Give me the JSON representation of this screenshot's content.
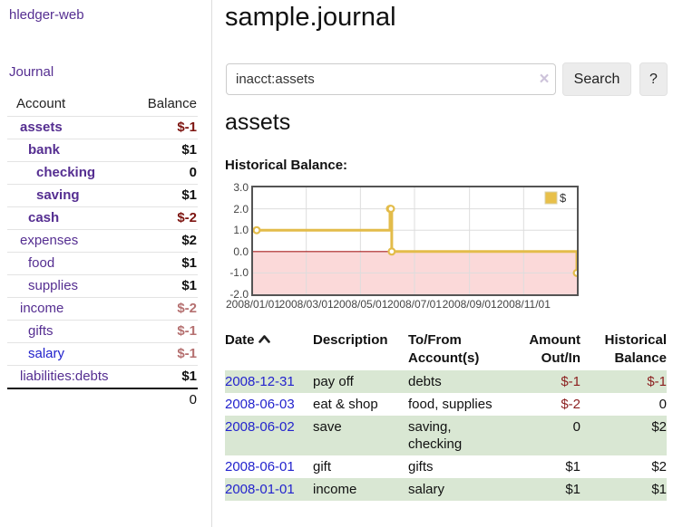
{
  "sidebar": {
    "app_title": "hledger-web",
    "nav": {
      "journal": "Journal"
    },
    "accounts": {
      "headers": {
        "account": "Account",
        "balance": "Balance"
      },
      "rows": [
        {
          "name": "assets",
          "depth": 1,
          "emph": true,
          "tone": "purple",
          "balance": "$-1",
          "balance_tone": "neg-strong"
        },
        {
          "name": "bank",
          "depth": 2,
          "emph": true,
          "tone": "purple",
          "balance": "$1",
          "balance_tone": ""
        },
        {
          "name": "checking",
          "depth": 3,
          "emph": true,
          "tone": "purple",
          "balance": "0",
          "balance_tone": ""
        },
        {
          "name": "saving",
          "depth": 3,
          "emph": true,
          "tone": "purple",
          "balance": "$1",
          "balance_tone": ""
        },
        {
          "name": "cash",
          "depth": 2,
          "emph": true,
          "tone": "purple",
          "balance": "$-2",
          "balance_tone": "neg-strong"
        },
        {
          "name": "expenses",
          "depth": 1,
          "emph": false,
          "tone": "purple",
          "balance": "$2",
          "balance_tone": ""
        },
        {
          "name": "food",
          "depth": 2,
          "emph": false,
          "tone": "purple",
          "balance": "$1",
          "balance_tone": ""
        },
        {
          "name": "supplies",
          "depth": 2,
          "emph": false,
          "tone": "purple",
          "balance": "$1",
          "balance_tone": ""
        },
        {
          "name": "income",
          "depth": 1,
          "emph": false,
          "tone": "purple",
          "balance": "$-2",
          "balance_tone": "neg-light"
        },
        {
          "name": "gifts",
          "depth": 2,
          "emph": false,
          "tone": "purple",
          "balance": "$-1",
          "balance_tone": "neg-light"
        },
        {
          "name": "salary",
          "depth": 2,
          "emph": false,
          "tone": "blue",
          "balance": "$-1",
          "balance_tone": "neg-light"
        },
        {
          "name": "liabilities:debts",
          "depth": 1,
          "emph": false,
          "tone": "purple",
          "balance": "$1",
          "balance_tone": ""
        }
      ],
      "total": "0"
    }
  },
  "main": {
    "title": "sample.journal",
    "search": {
      "value": "inacct:assets",
      "clear_icon": "×",
      "button": "Search",
      "help_button": "?"
    },
    "account_heading": "assets",
    "section_label": "Historical Balance:"
  },
  "chart_data": {
    "type": "line",
    "step": true,
    "title": "Historical Balance of assets",
    "series": [
      {
        "name": "$",
        "points": [
          [
            "2008-01-01",
            1
          ],
          [
            "2008-06-01",
            2
          ],
          [
            "2008-06-02",
            2
          ],
          [
            "2008-06-03",
            0
          ],
          [
            "2008-12-31",
            -1
          ]
        ]
      }
    ],
    "x_ticks": [
      "2008/01/01",
      "2008/03/01",
      "2008/05/01",
      "2008/07/01",
      "2008/09/01",
      "2008/11/01"
    ],
    "y_ticks": [
      "3.0",
      "2.0",
      "1.0",
      "0.0",
      "-1.0",
      "-2.0"
    ],
    "ylim": [
      -2,
      3
    ],
    "xlim": [
      "2008-01-01",
      "2008-12-31"
    ],
    "grid": true,
    "legend": {
      "label": "$",
      "position": "top-right"
    },
    "colors": {
      "line": "#e3bc4a",
      "marker_fill": "#ffffff",
      "legend_fill": "#e8c04a",
      "negative_region": "#fbd9d9",
      "zero_line": "#a82020",
      "grid": "#dddddd",
      "border": "#545454"
    }
  },
  "transactions": {
    "headers": [
      {
        "lines": [
          "Date"
        ],
        "sort": "asc",
        "align": "left"
      },
      {
        "lines": [
          "Description"
        ],
        "align": "left"
      },
      {
        "lines": [
          "To/From",
          "Account(s)"
        ],
        "align": "left"
      },
      {
        "lines": [
          "Amount",
          "Out/In"
        ],
        "align": "right"
      },
      {
        "lines": [
          "Historical",
          "Balance"
        ],
        "align": "right"
      }
    ],
    "rows": [
      {
        "date": "2008-12-31",
        "description": "pay off",
        "accounts_lines": [
          "debts"
        ],
        "amount": "$-1",
        "amount_tone": "neg",
        "balance": "$-1",
        "balance_tone": "neg",
        "shaded": true
      },
      {
        "date": "2008-06-03",
        "description": "eat & shop",
        "accounts_lines": [
          "food, supplies"
        ],
        "amount": "$-2",
        "amount_tone": "neg",
        "balance": "0",
        "balance_tone": "",
        "shaded": false
      },
      {
        "date": "2008-06-02",
        "description": "save",
        "accounts_lines": [
          "saving,",
          "checking"
        ],
        "amount": "0",
        "amount_tone": "",
        "balance": "$2",
        "balance_tone": "",
        "shaded": true
      },
      {
        "date": "2008-06-01",
        "description": "gift",
        "accounts_lines": [
          "gifts"
        ],
        "amount": "$1",
        "amount_tone": "",
        "balance": "$2",
        "balance_tone": "",
        "shaded": false
      },
      {
        "date": "2008-01-01",
        "description": "income",
        "accounts_lines": [
          "salary"
        ],
        "amount": "$1",
        "amount_tone": "",
        "balance": "$1",
        "balance_tone": "",
        "shaded": true
      }
    ]
  }
}
